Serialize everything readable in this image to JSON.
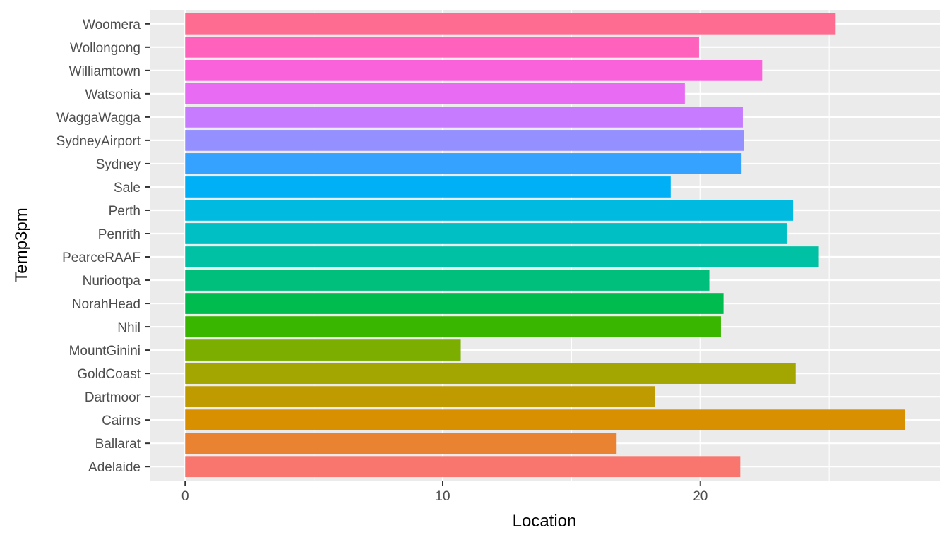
{
  "chart_data": {
    "type": "bar",
    "orientation": "horizontal",
    "xlabel": "Location",
    "ylabel": "Temp3pm",
    "xlim": [
      -1.35,
      29.3
    ],
    "x_ticks": [
      0,
      10,
      20
    ],
    "grid": true,
    "legend": "none",
    "categories": [
      "Adelaide",
      "Ballarat",
      "Cairns",
      "Dartmoor",
      "GoldCoast",
      "MountGinini",
      "Nhil",
      "NorahHead",
      "Nuriootpa",
      "PearceRAAF",
      "Penrith",
      "Perth",
      "Sale",
      "Sydney",
      "SydneyAirport",
      "WaggaWagga",
      "Watsonia",
      "Williamtown",
      "Wollongong",
      "Woomera"
    ],
    "values": [
      21.55,
      16.75,
      27.95,
      18.25,
      23.7,
      10.7,
      20.8,
      20.9,
      20.35,
      24.6,
      23.35,
      23.6,
      18.85,
      21.6,
      21.7,
      21.65,
      19.4,
      22.4,
      19.95,
      25.25
    ],
    "colors": [
      "#F8766D",
      "#EA8331",
      "#D89000",
      "#C09B00",
      "#A3A500",
      "#7CAE00",
      "#39B600",
      "#00BB4E",
      "#00BF7D",
      "#00C1A3",
      "#00BFC4",
      "#00BAE0",
      "#00B0F6",
      "#35A2FF",
      "#9590FF",
      "#C77CFF",
      "#E76BF3",
      "#FA62DB",
      "#FF62BC",
      "#FF6C91"
    ]
  }
}
